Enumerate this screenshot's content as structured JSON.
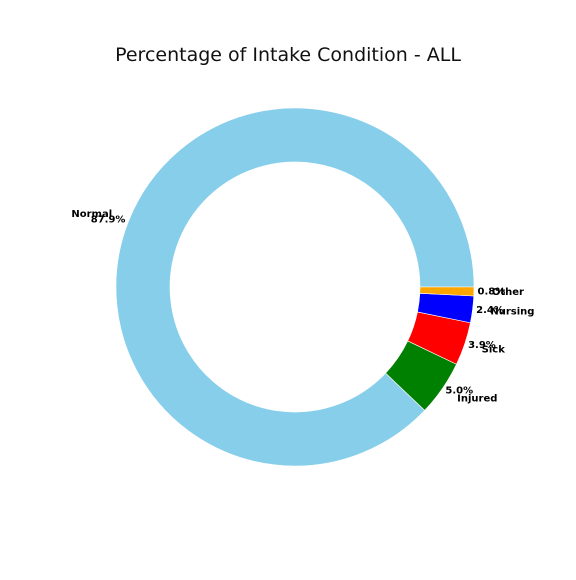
{
  "chart_data": {
    "type": "pie",
    "title": "Percentage of Intake Condition - ALL",
    "donut": true,
    "start_angle_deg": 0,
    "direction": "counterclockwise",
    "slices": [
      {
        "label": "Normal",
        "value": 87.9,
        "value_label": "87.9%",
        "color": "#87CEEB"
      },
      {
        "label": "Injured",
        "value": 5.0,
        "value_label": "5.0%",
        "color": "#008000"
      },
      {
        "label": "Sick",
        "value": 3.9,
        "value_label": "3.9%",
        "color": "#FF0000"
      },
      {
        "label": "Nursing",
        "value": 2.4,
        "value_label": "2.4%",
        "color": "#0000FF"
      },
      {
        "label": "Other",
        "value": 0.8,
        "value_label": "0.8%",
        "color": "#FFA500"
      }
    ]
  }
}
